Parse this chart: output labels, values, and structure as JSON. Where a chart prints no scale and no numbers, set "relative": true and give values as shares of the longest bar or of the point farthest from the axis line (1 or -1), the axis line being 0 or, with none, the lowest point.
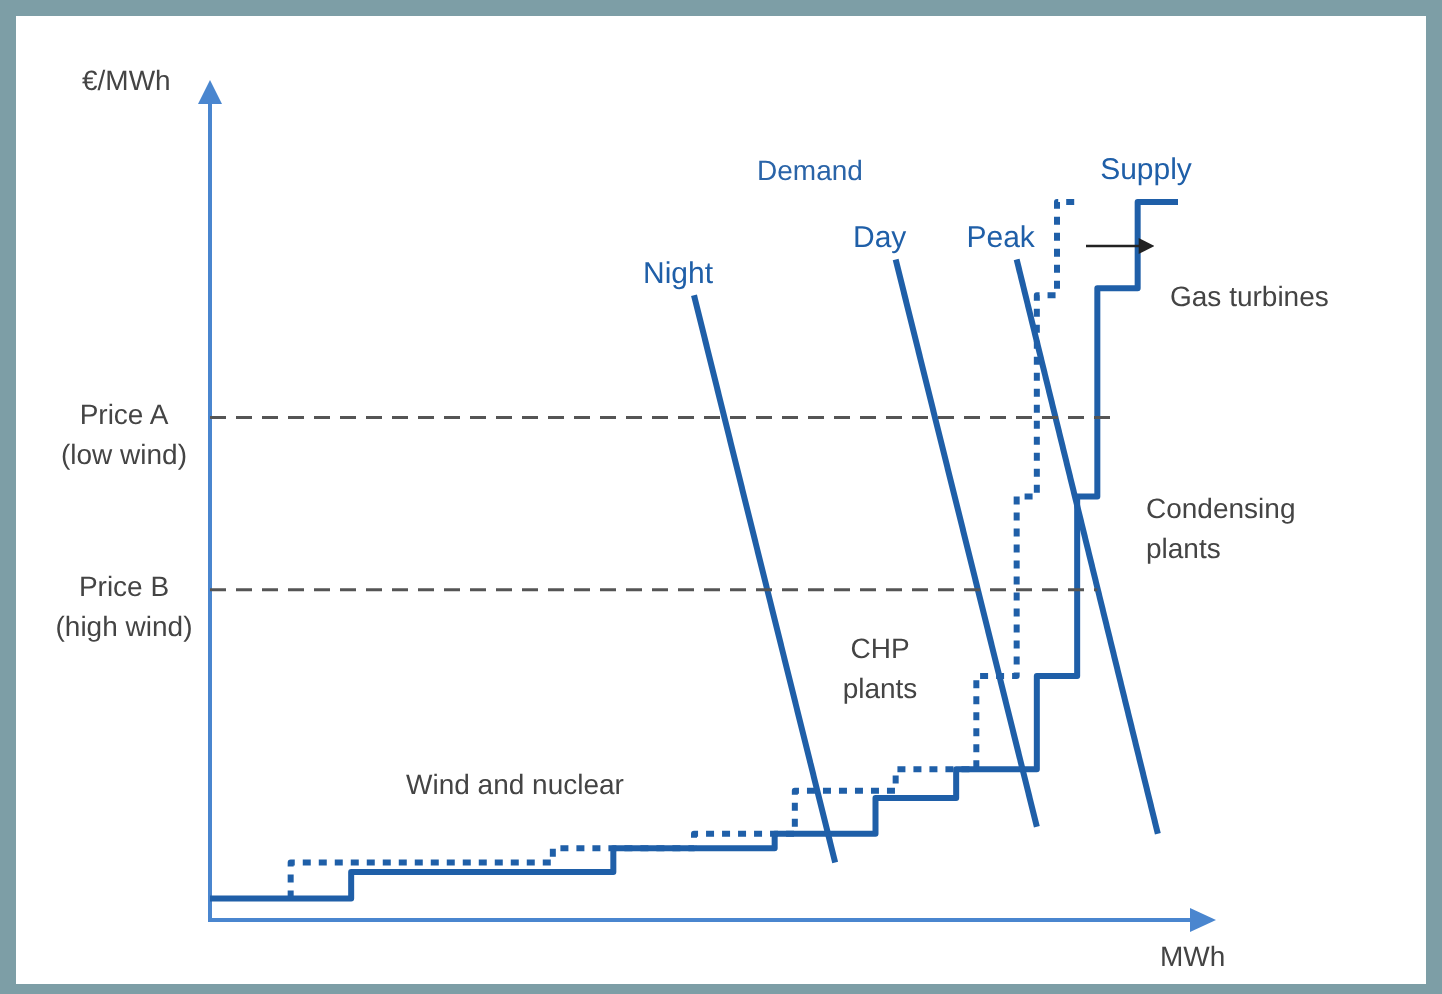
{
  "chart_data": {
    "type": "line",
    "relative": true,
    "xlabel": "MWh",
    "ylabel": "€/MWh",
    "categories": [
      null,
      null,
      null,
      null,
      null,
      null,
      null,
      null,
      null,
      null,
      null,
      null,
      null,
      null,
      null,
      null,
      null,
      null,
      null,
      null,
      null,
      null,
      null,
      null,
      null,
      null,
      null,
      null,
      null,
      null,
      null,
      null,
      null,
      null,
      null,
      null,
      null,
      null,
      null,
      null,
      null,
      null,
      null,
      null,
      null,
      null,
      null,
      null,
      null
    ],
    "series": [
      {
        "name": "Supply",
        "type": "step",
        "color": "#1f5fa8",
        "line_style": "solid",
        "values": [
          0.03,
          0.03,
          0.03,
          0.03,
          0.03,
          0.03,
          0.03,
          0.03,
          0.067,
          0.067,
          0.067,
          0.067,
          0.067,
          0.067,
          0.067,
          0.067,
          0.067,
          0.067,
          0.067,
          0.067,
          0.067,
          0.1,
          0.1,
          0.1,
          0.1,
          0.1,
          0.1,
          0.1,
          0.1,
          0.12,
          0.12,
          0.12,
          0.12,
          0.12,
          0.17,
          0.17,
          0.17,
          0.17,
          0.21,
          0.21,
          0.21,
          0.21,
          0.34,
          0.34,
          0.59,
          0.88,
          0.88,
          1,
          1
        ]
      },
      {
        "type": "step",
        "color": "#1f5fa8",
        "line_style": "dotted",
        "values": [
          null,
          null,
          null,
          null,
          0.03,
          0.08,
          0.08,
          0.08,
          0.08,
          0.08,
          0.08,
          0.08,
          0.08,
          0.08,
          0.08,
          0.08,
          0.08,
          0.08,
          0.1,
          0.1,
          0.1,
          0.1,
          0.1,
          0.1,
          0.1,
          0.12,
          0.12,
          0.12,
          0.12,
          0.12,
          0.18,
          0.18,
          0.18,
          0.18,
          0.18,
          0.21,
          0.21,
          0.21,
          0.21,
          0.34,
          0.34,
          0.59,
          0.87,
          1,
          null,
          null,
          null,
          null,
          null
        ]
      },
      {
        "name": "Night",
        "type": "line",
        "color": "#1f5fa8",
        "line_style": "solid",
        "values": [
          null,
          null,
          null,
          null,
          null,
          null,
          null,
          null,
          null,
          null,
          null,
          null,
          null,
          null,
          null,
          null,
          null,
          null,
          null,
          null,
          null,
          null,
          null,
          null,
          0.87,
          null,
          null,
          null,
          null,
          null,
          null,
          0.08,
          null,
          null,
          null,
          null,
          null,
          null,
          null,
          null,
          null,
          null,
          null,
          null,
          null,
          null,
          null,
          null,
          null
        ]
      },
      {
        "name": "Day",
        "type": "line",
        "color": "#1f5fa8",
        "line_style": "solid",
        "values": [
          null,
          null,
          null,
          null,
          null,
          null,
          null,
          null,
          null,
          null,
          null,
          null,
          null,
          null,
          null,
          null,
          null,
          null,
          null,
          null,
          null,
          null,
          null,
          null,
          null,
          null,
          null,
          null,
          null,
          null,
          null,
          null,
          null,
          null,
          0.92,
          null,
          null,
          null,
          null,
          null,
          null,
          0.13,
          null,
          null,
          null,
          null,
          null,
          null,
          null
        ]
      },
      {
        "name": "Peak",
        "type": "line",
        "color": "#1f5fa8",
        "line_style": "solid",
        "values": [
          null,
          null,
          null,
          null,
          null,
          null,
          null,
          null,
          null,
          null,
          null,
          null,
          null,
          null,
          null,
          null,
          null,
          null,
          null,
          null,
          null,
          null,
          null,
          null,
          null,
          null,
          null,
          null,
          null,
          null,
          null,
          null,
          null,
          null,
          null,
          null,
          null,
          null,
          null,
          null,
          0.92,
          null,
          null,
          null,
          null,
          null,
          null,
          0.12,
          null
        ]
      }
    ],
    "ref_lines": [
      {
        "axis": "y",
        "value": 0.7,
        "label": "Price A (low wind)",
        "color": "#555555",
        "line_style": "dashed"
      },
      {
        "axis": "y",
        "value": 0.46,
        "label": "Price B (high wind)",
        "color": "#555555",
        "line_style": "dashed"
      }
    ],
    "annotations": [
      "Demand",
      "Wind and nuclear",
      "CHP plants",
      "Condensing plants",
      "Gas turbines"
    ],
    "legend": false,
    "grid": false,
    "marker": "none"
  }
}
